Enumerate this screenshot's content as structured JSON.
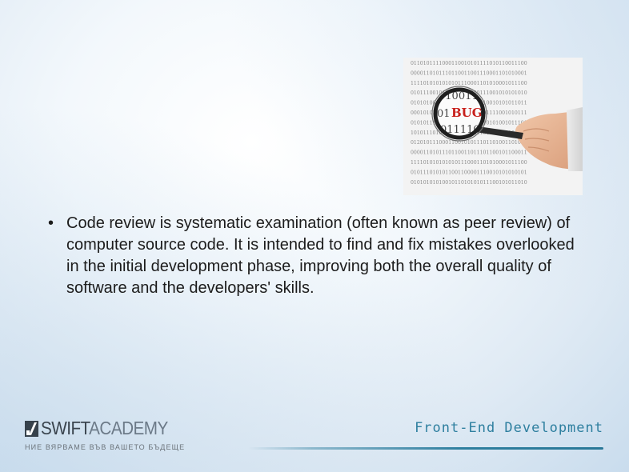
{
  "slide": {
    "image": {
      "icon": "magnifier-bug-icon",
      "magnified_text": "BUG",
      "binary_rows": [
        "0110101111000110010101111010110011100",
        "0000110101110110011001110001101010001",
        "1111010101010101110001101010001011100",
        "0101110010110011100000111001010101010",
        "0101010011011010010101110010101011011",
        "0001010101011010110100101111001010111",
        "0101011101011101001101010101001011101",
        "1010111010111101011100101110100101101",
        "0120101110001100101011101101001101010",
        "0000110101110110011011101100101100011",
        "1111010101010101110001101010001011100",
        "0101110101011001100001110010101010101",
        "0101010101001011010101011100101011010"
      ],
      "lens_rows": [
        "0100110",
        "01BUG0",
        "011110"
      ]
    },
    "bullets": [
      "Code review is systematic examination (often known as peer review) of computer source code. It is intended to find and fix mistakes overlooked in the initial development phase, improving both the overall quality of software and the developers' skills."
    ],
    "bullet_glyph": "•"
  },
  "footer": {
    "logo_swift": "SWIFT",
    "logo_academy": "ACADEMY",
    "logo_icon": "swift-academy-logo-mark",
    "tagline": "НИЕ ВЯРВАМЕ ВЪВ ВАШЕТО БЪДЕЩЕ",
    "course_title": "Front-End  Development"
  },
  "colors": {
    "accent": "#2e7f9f",
    "text": "#1c1c1c",
    "bug_red": "#c8201c"
  }
}
